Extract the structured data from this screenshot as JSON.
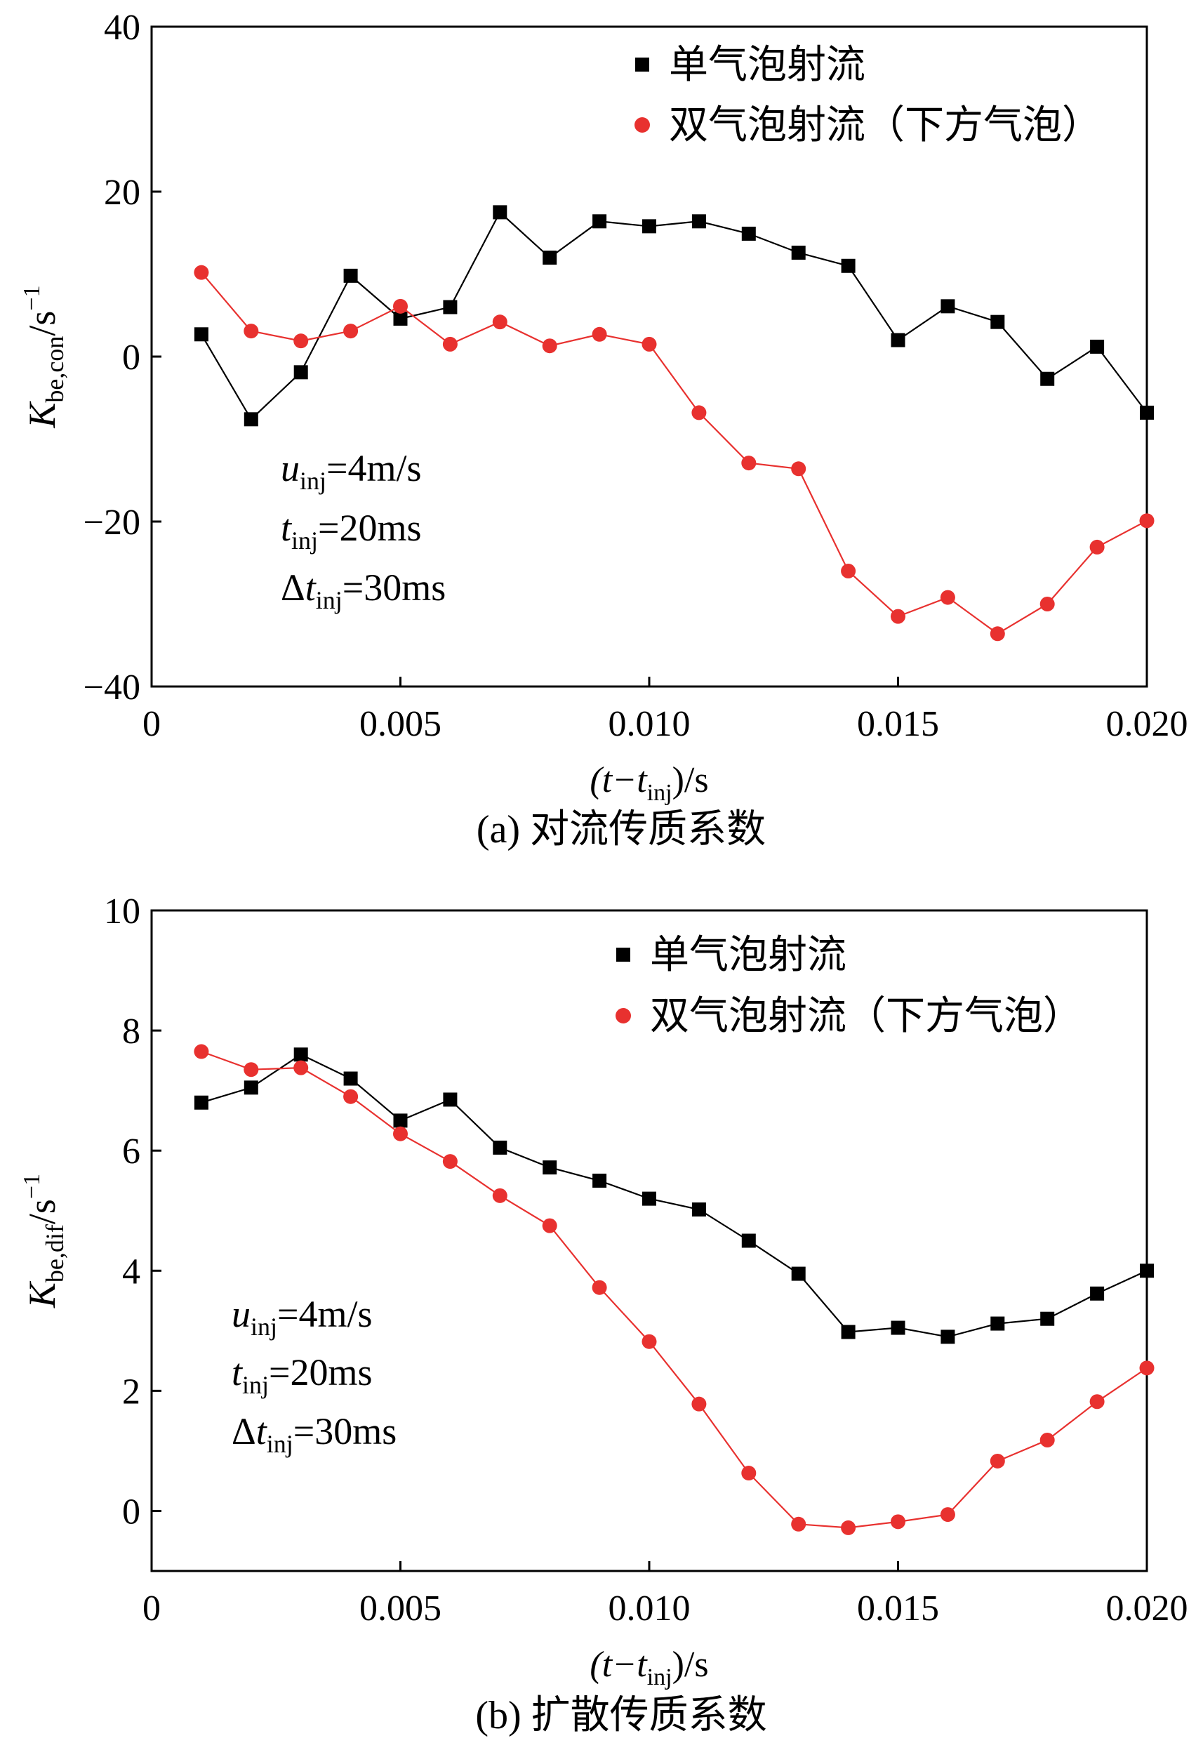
{
  "chart_data": [
    {
      "type": "line",
      "caption": "(a) 对流传质系数",
      "xlabel": "(t−t",
      "xlabel_sub": "inj",
      "xlabel_suffix": ")/s",
      "ylabel": "K",
      "ylabel_sub": "be,con",
      "ylabel_unit": "/s",
      "ylabel_sup": "−1",
      "xlim": [
        0,
        0.02
      ],
      "ylim": [
        -40,
        40
      ],
      "xticks": [
        0,
        0.005,
        0.01,
        0.015,
        0.02
      ],
      "xtick_labels": [
        "0",
        "0.005",
        "0.010",
        "0.015",
        "0.020"
      ],
      "yticks": [
        -40,
        -20,
        0,
        20,
        40
      ],
      "ytick_labels": [
        "−40",
        "−20",
        "0",
        "20",
        "40"
      ],
      "annotations": {
        "u": "u",
        "u_sub": "inj",
        "u_val": "=4m/s",
        "t": "t",
        "t_sub": "inj",
        "t_val": "=20ms",
        "dt_prefix": "Δ",
        "dt": "t",
        "dt_sub": "inj",
        "dt_val": "=30ms"
      },
      "series": [
        {
          "name": "单气泡射流",
          "marker": "square",
          "color": "#000000",
          "x": [
            0.001,
            0.002,
            0.003,
            0.004,
            0.005,
            0.006,
            0.007,
            0.008,
            0.009,
            0.01,
            0.011,
            0.012,
            0.013,
            0.014,
            0.015,
            0.016,
            0.017,
            0.018,
            0.019,
            0.02
          ],
          "values": [
            2.7,
            -7.6,
            -1.9,
            9.8,
            4.6,
            6.0,
            17.5,
            12.0,
            16.4,
            15.8,
            16.4,
            14.9,
            12.6,
            11.0,
            2.0,
            6.1,
            4.2,
            -2.7,
            1.2,
            -6.8
          ]
        },
        {
          "name": "双气泡射流（下方气泡）",
          "marker": "circle",
          "color": "#e8312f",
          "x": [
            0.001,
            0.002,
            0.003,
            0.004,
            0.005,
            0.006,
            0.007,
            0.008,
            0.009,
            0.01,
            0.011,
            0.012,
            0.013,
            0.014,
            0.015,
            0.016,
            0.017,
            0.018,
            0.019,
            0.02
          ],
          "values": [
            10.2,
            3.1,
            1.9,
            3.1,
            6.1,
            1.5,
            4.2,
            1.3,
            2.7,
            1.5,
            -6.8,
            -12.9,
            -13.6,
            -26.0,
            -31.5,
            -29.2,
            -33.6,
            -30.0,
            -23.1,
            -19.9
          ]
        }
      ]
    },
    {
      "type": "line",
      "caption": "(b) 扩散传质系数",
      "xlabel": "(t−t",
      "xlabel_sub": "inj",
      "xlabel_suffix": ")/s",
      "ylabel": "K",
      "ylabel_sub": "be,dif",
      "ylabel_unit": "/s",
      "ylabel_sup": "−1",
      "xlim": [
        0,
        0.02
      ],
      "ylim": [
        -1,
        10
      ],
      "xticks": [
        0,
        0.005,
        0.01,
        0.015,
        0.02
      ],
      "xtick_labels": [
        "0",
        "0.005",
        "0.010",
        "0.015",
        "0.020"
      ],
      "yticks": [
        0,
        2,
        4,
        6,
        8,
        10
      ],
      "ytick_labels": [
        "0",
        "2",
        "4",
        "6",
        "8",
        "10"
      ],
      "annotations": {
        "u": "u",
        "u_sub": "inj",
        "u_val": "=4m/s",
        "t": "t",
        "t_sub": "inj",
        "t_val": "=20ms",
        "dt_prefix": "Δ",
        "dt": "t",
        "dt_sub": "inj",
        "dt_val": "=30ms"
      },
      "series": [
        {
          "name": "单气泡射流",
          "marker": "square",
          "color": "#000000",
          "x": [
            0.001,
            0.002,
            0.003,
            0.004,
            0.005,
            0.006,
            0.007,
            0.008,
            0.009,
            0.01,
            0.011,
            0.012,
            0.013,
            0.014,
            0.015,
            0.016,
            0.017,
            0.018,
            0.019,
            0.02
          ],
          "values": [
            6.8,
            7.05,
            7.6,
            7.2,
            6.5,
            6.85,
            6.05,
            5.72,
            5.5,
            5.2,
            5.02,
            4.5,
            3.95,
            2.98,
            3.05,
            2.9,
            3.12,
            3.2,
            3.62,
            4.0
          ]
        },
        {
          "name": "双气泡射流（下方气泡）",
          "marker": "circle",
          "color": "#e8312f",
          "x": [
            0.001,
            0.002,
            0.003,
            0.004,
            0.005,
            0.006,
            0.007,
            0.008,
            0.009,
            0.01,
            0.011,
            0.012,
            0.013,
            0.014,
            0.015,
            0.016,
            0.017,
            0.018,
            0.019,
            0.02
          ],
          "values": [
            7.65,
            7.35,
            7.38,
            6.9,
            6.28,
            5.82,
            5.25,
            4.75,
            3.72,
            2.82,
            1.78,
            0.63,
            -0.22,
            -0.28,
            -0.18,
            -0.06,
            0.83,
            1.18,
            1.82,
            2.38
          ]
        }
      ]
    }
  ]
}
